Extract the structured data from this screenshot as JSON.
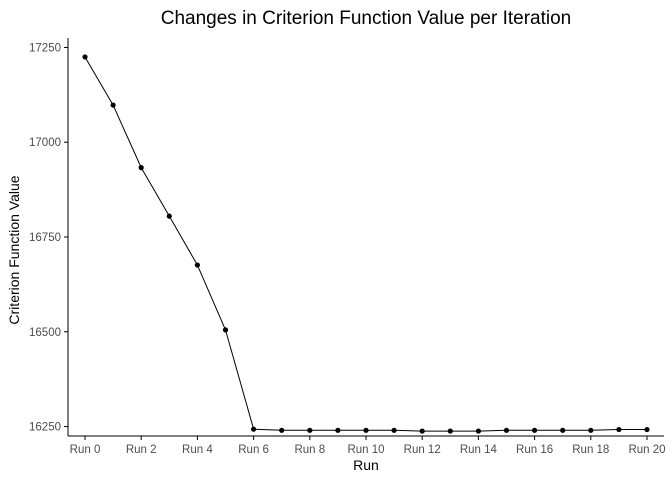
{
  "chart_data": {
    "type": "line",
    "title": "Changes in Criterion Function Value per Iteration",
    "xlabel": "Run",
    "ylabel": "Criterion Function Value",
    "categories": [
      "Run 0",
      "Run 1",
      "Run 2",
      "Run 3",
      "Run 4",
      "Run 5",
      "Run 6",
      "Run 7",
      "Run 8",
      "Run 9",
      "Run 10",
      "Run 11",
      "Run 12",
      "Run 13",
      "Run 14",
      "Run 15",
      "Run 16",
      "Run 17",
      "Run 18",
      "Run 19",
      "Run 20"
    ],
    "x_tick_labels": [
      "Run 0",
      "Run 2",
      "Run 4",
      "Run 6",
      "Run 8",
      "Run 10",
      "Run 12",
      "Run 14",
      "Run 16",
      "Run 18",
      "Run 20"
    ],
    "y_ticks": [
      16250,
      16500,
      16750,
      17000,
      17250
    ],
    "ylim": [
      16225,
      17275
    ],
    "values": [
      17225,
      17098,
      16933,
      16805,
      16676,
      16505,
      16243,
      16240,
      16240,
      16240,
      16240,
      16240,
      16238,
      16238,
      16238,
      16240,
      16240,
      16240,
      16240,
      16242,
      16242
    ],
    "grid": false,
    "legend": "none",
    "colors": {
      "line": "#000000",
      "point": "#000000",
      "axis": "#000000",
      "tick_text": "#4d4d4d"
    }
  }
}
